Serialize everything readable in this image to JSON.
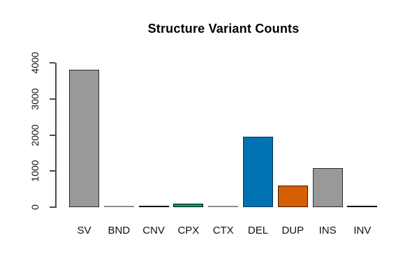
{
  "chart_data": {
    "type": "bar",
    "title": "Structure Variant Counts",
    "categories": [
      "SV",
      "BND",
      "CNV",
      "CPX",
      "CTX",
      "DEL",
      "DUP",
      "INS",
      "INV"
    ],
    "values": [
      3800,
      5,
      25,
      90,
      5,
      1950,
      600,
      1080,
      15
    ],
    "bar_fill_colors": [
      "#999999",
      "#999999",
      "#000000",
      "#009E73",
      "#999999",
      "#0072B2",
      "#D55E00",
      "#999999",
      "#000000"
    ],
    "bar_border_colors": [
      "#2b2b2b",
      "#8f8f8f",
      "#000000",
      "#101010",
      "#8f8f8f",
      "#17314a",
      "#3a1c07",
      "#2b2b2b",
      "#000000"
    ],
    "xlabel": "",
    "ylabel": "",
    "ylim": [
      0,
      4000
    ],
    "yticks": [
      0,
      1000,
      2000,
      3000,
      4000
    ],
    "grid": false,
    "legend": "none",
    "background_color": "#ffffff",
    "axis_color": "#4a4a4a"
  }
}
